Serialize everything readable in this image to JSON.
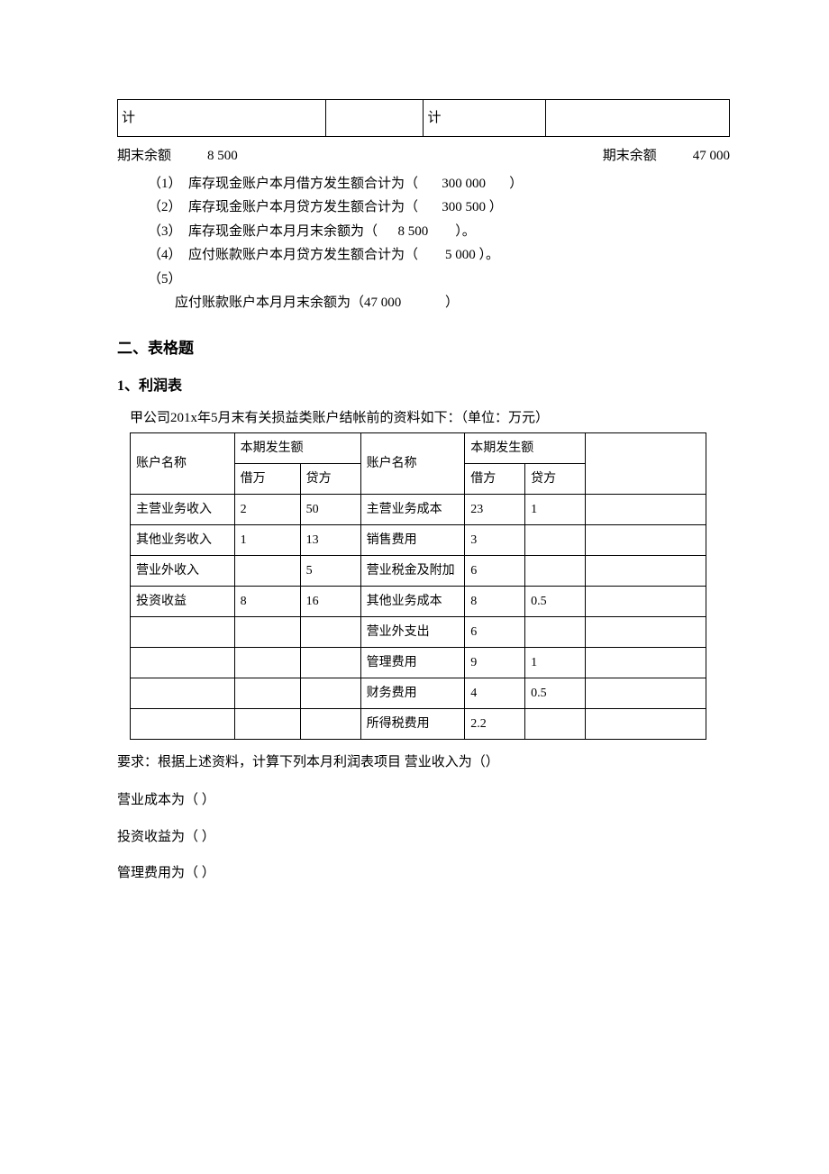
{
  "topTable": {
    "left": "计",
    "right": "计"
  },
  "endRow": {
    "leftLabel": "期末余额",
    "leftVal": "8 500",
    "rightLabel": "期末余额",
    "rightVal": "47 000"
  },
  "items": [
    "（1）  库存现金账户本月借方发生额合计为（       300 000       ）",
    "（2）  库存现金账户本月贷方发生额合计为（       300 500 ）",
    "（3）  库存现金账户本月月末余额为（      8 500        ）。",
    "（4）  应付账款账户本月贷方发生额合计为（        5 000 ）。",
    "（5）",
    "        应付账款账户本月月末余额为（47 000             ）"
  ],
  "section2": "二、表格题",
  "sub1": "1、利润表",
  "tableIntro": "甲公司201x年5月末有关损益类账户结帐前的资料如下：（单位：万元）",
  "dataTable": {
    "header": [
      "账户名称",
      "本期发生额",
      "",
      "账户名称",
      "本期发生额",
      "",
      ""
    ],
    "sub": [
      "",
      "借万",
      "贷方",
      "",
      "借方",
      "贷方",
      ""
    ],
    "rows": [
      [
        "主营业务收入",
        "2",
        "50",
        "主营业务成本",
        "23",
        "1",
        ""
      ],
      [
        "其他业务收入",
        "1",
        "13",
        "销售费用",
        "3",
        "",
        ""
      ],
      [
        "营业外收入",
        "",
        "5",
        "营业税金及附加",
        "6",
        "",
        ""
      ],
      [
        "投资收益",
        "8",
        "16",
        "其他业务成本",
        "8",
        "0.5",
        ""
      ],
      [
        "",
        "",
        "",
        "营业外支出",
        "6",
        "",
        ""
      ],
      [
        "",
        "",
        "",
        "管理费用",
        "9",
        "1",
        ""
      ],
      [
        "",
        "",
        "",
        "财务费用",
        "4",
        "0.5",
        ""
      ],
      [
        "",
        "",
        "",
        "所得税费用",
        "2.2",
        "",
        ""
      ]
    ],
    "col_widths": [
      "95px",
      "60px",
      "55px",
      "95px",
      "55px",
      "55px",
      "110px"
    ]
  },
  "req": "要求：根据上述资料，计算下列本月利润表项目  营业收入为（）",
  "lines": [
    "营业成本为（            ）",
    "投资收益为（            ）",
    "管理费用为（            ）"
  ]
}
